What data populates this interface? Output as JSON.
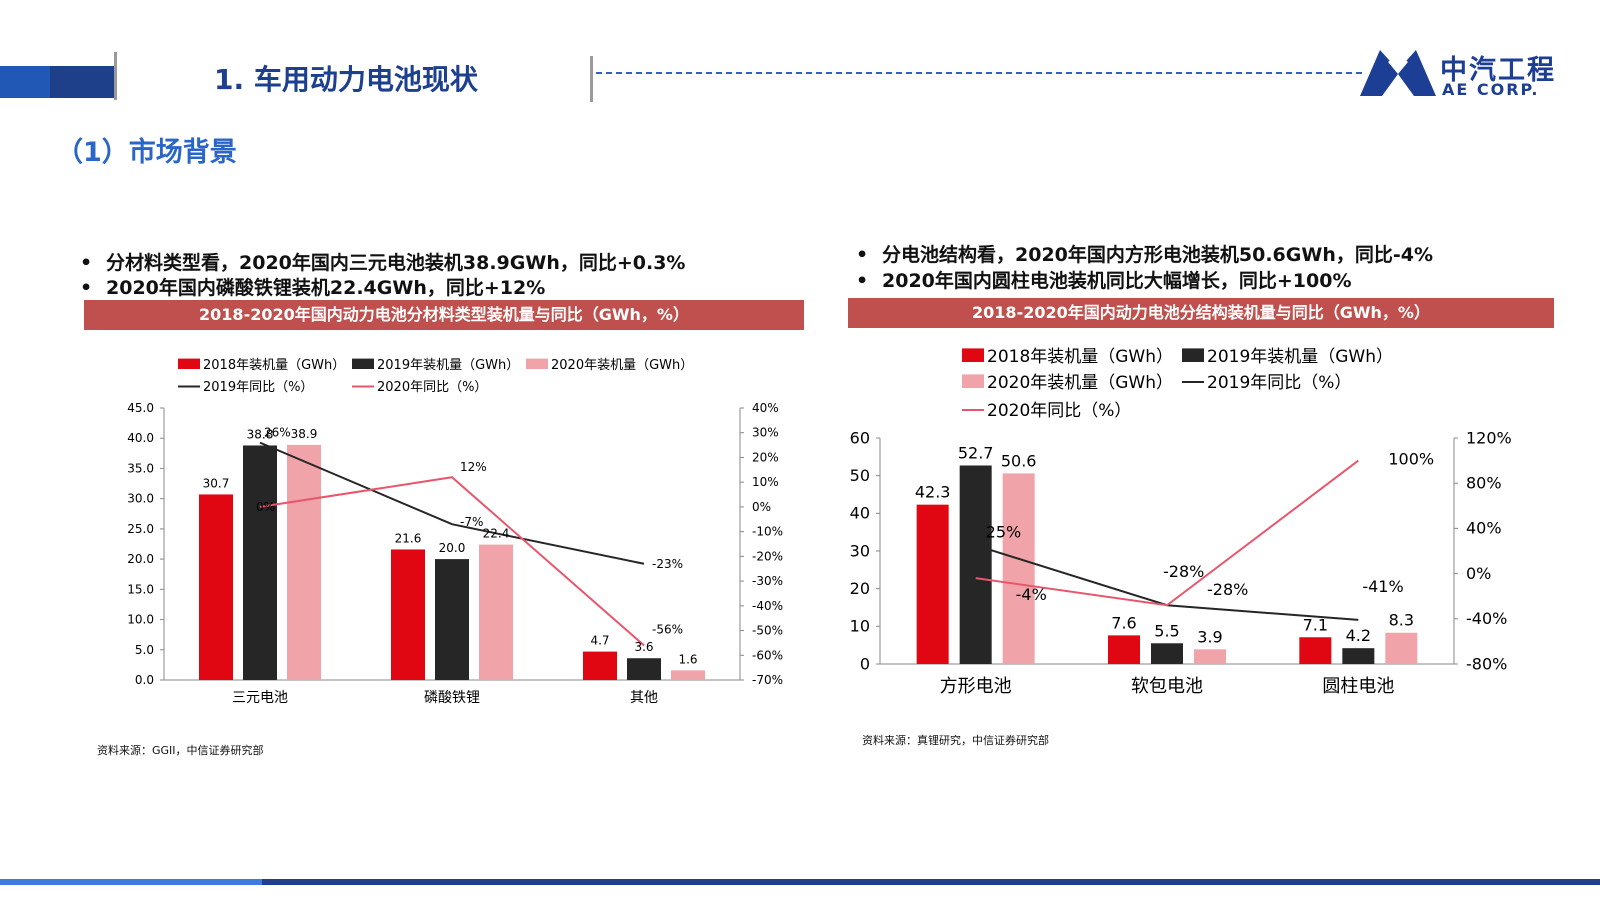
{
  "header": {
    "title": "1. 车用动力电池现状",
    "logo_cn": "中汽工程",
    "logo_en": "AE CORP."
  },
  "section_title": "（1）市场背景",
  "left": {
    "bullets": [
      "分材料类型看，2020年国内三元电池装机38.9GWh，同比+0.3%",
      "2020年国内磷酸铁锂装机22.4GWh，同比+12%"
    ],
    "banner": "2018-2020年国内动力电池分材料类型装机量与同比（GWh，%）",
    "source": "资料来源：GGII，中信证券研究部"
  },
  "right": {
    "bullets": [
      "分电池结构看，2020年国内方形电池装机50.6GWh，同比-4%",
      "2020年国内圆柱电池装机同比大幅增长，同比+100%"
    ],
    "banner": "2018-2020年国内动力电池分结构装机量与同比（GWh，%）",
    "source": "资料来源：真锂研究，中信证券研究部"
  },
  "colors": {
    "s2018": "#e00612",
    "s2019": "#262626",
    "s2020": "#f0a3a8",
    "l2020": "#e8566c",
    "banner": "#c0504d"
  },
  "chart_data": [
    {
      "type": "bar",
      "categories": [
        "三元电池",
        "磷酸铁锂",
        "其他"
      ],
      "series": [
        {
          "name": "2018年装机量（GWh）",
          "values": [
            30.7,
            21.6,
            4.7
          ],
          "value_labels": [
            "30.7",
            "21.6",
            "4.7"
          ]
        },
        {
          "name": "2019年装机量（GWh）",
          "values": [
            38.8,
            20.0,
            3.6
          ],
          "value_labels": [
            "38.8",
            "20.0",
            "3.6"
          ]
        },
        {
          "name": "2020年装机量（GWh）",
          "values": [
            38.9,
            22.4,
            1.6
          ],
          "value_labels": [
            "38.9",
            "22.4",
            "1.6"
          ]
        }
      ],
      "lines": [
        {
          "name": "2019年同比（%）",
          "values": [
            26,
            -7,
            -23
          ],
          "value_labels": [
            "26%",
            "-7%",
            "-23%"
          ]
        },
        {
          "name": "2020年同比（%）",
          "values": [
            0,
            12,
            -56
          ],
          "value_labels": [
            "0%",
            "12%",
            "-56%"
          ]
        }
      ],
      "ylim": [
        0,
        45
      ],
      "yticks": [
        "0.0",
        "5.0",
        "10.0",
        "15.0",
        "20.0",
        "25.0",
        "30.0",
        "35.0",
        "40.0",
        "45.0"
      ],
      "y2lim": [
        -70,
        40
      ],
      "y2ticks": [
        "-70%",
        "-60%",
        "-50%",
        "-40%",
        "-30%",
        "-20%",
        "-10%",
        "0%",
        "10%",
        "20%",
        "30%",
        "40%"
      ],
      "legend": "top"
    },
    {
      "type": "bar",
      "categories": [
        "方形电池",
        "软包电池",
        "圆柱电池"
      ],
      "series": [
        {
          "name": "2018年装机量（GWh）",
          "values": [
            42.3,
            7.6,
            7.1
          ],
          "value_labels": [
            "42.3",
            "7.6",
            "7.1"
          ]
        },
        {
          "name": "2019年装机量（GWh）",
          "values": [
            52.7,
            5.5,
            4.2
          ],
          "value_labels": [
            "52.7",
            "5.5",
            "4.2"
          ]
        },
        {
          "name": "2020年装机量（GWh）",
          "values": [
            50.6,
            3.9,
            8.3
          ],
          "value_labels": [
            "50.6",
            "3.9",
            "8.3"
          ]
        }
      ],
      "lines": [
        {
          "name": "2019年同比（%）",
          "values": [
            25,
            -28,
            -41
          ],
          "value_labels": [
            "25%",
            "-28%",
            "-41%"
          ]
        },
        {
          "name": "2020年同比（%）",
          "values": [
            -4,
            -28,
            100
          ],
          "value_labels": [
            "-4%",
            "-28%",
            "100%"
          ]
        }
      ],
      "ylim": [
        0,
        60
      ],
      "yticks": [
        "0",
        "10",
        "20",
        "30",
        "40",
        "50",
        "60"
      ],
      "y2lim": [
        -80,
        120
      ],
      "y2ticks": [
        "-80%",
        "-40%",
        "0%",
        "40%",
        "80%",
        "120%"
      ],
      "legend": "top"
    }
  ]
}
